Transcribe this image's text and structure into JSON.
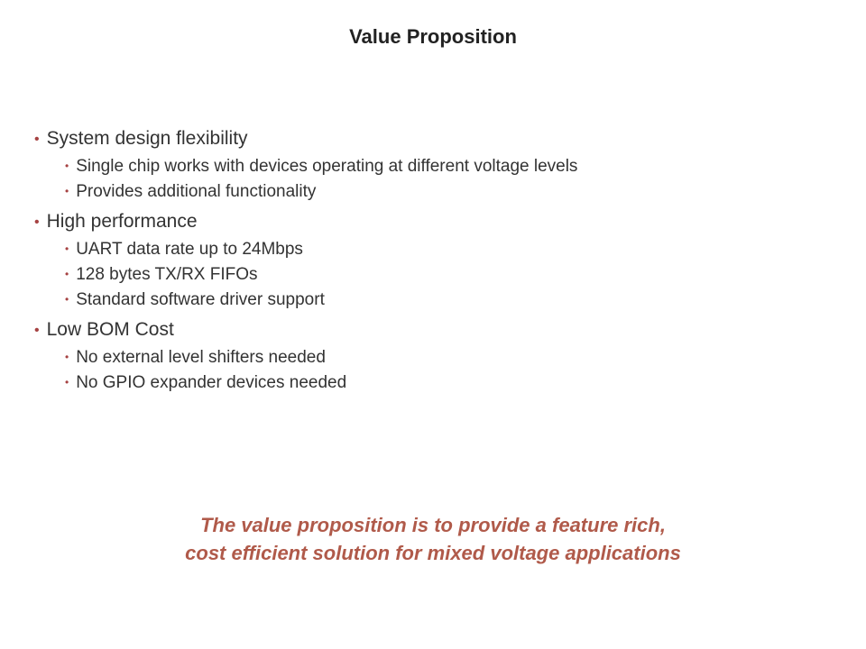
{
  "title": "Value Proposition",
  "sections": [
    {
      "label": "System design flexibility",
      "subs": [
        "Single chip works with devices operating at different voltage levels",
        "Provides additional functionality"
      ]
    },
    {
      "label": "High performance",
      "subs": [
        "UART data rate up to 24Mbps",
        "128 bytes TX/RX FIFOs",
        "Standard software driver support"
      ]
    },
    {
      "label": "Low BOM Cost",
      "subs": [
        "No external level shifters needed",
        "No GPIO expander devices needed"
      ]
    }
  ],
  "summary_line1": "The value proposition is to provide a feature rich,",
  "summary_line2": "cost efficient solution for mixed voltage applications",
  "colors": {
    "background": "#ffffff",
    "title_text": "#222222",
    "body_text": "#333333",
    "bullet": "#a64242",
    "summary_text": "#b05a4a"
  },
  "typography": {
    "title_fontsize": 22,
    "main_fontsize": 21,
    "sub_fontsize": 19,
    "summary_fontsize": 22,
    "font_family": "Verdana"
  }
}
